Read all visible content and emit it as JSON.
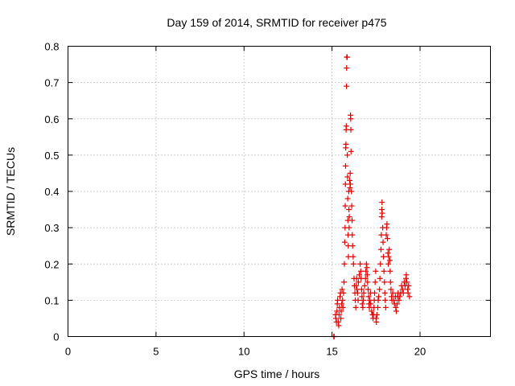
{
  "chart_data": {
    "type": "scatter",
    "title": "Day 159 of 2014, SRMTID for receiver p475",
    "xlabel": "GPS time / hours",
    "ylabel": "SRMTID / TECUs",
    "xlim": [
      0,
      24
    ],
    "ylim": [
      0,
      0.8
    ],
    "xticks": [
      "0",
      "5",
      "10",
      "15",
      "20"
    ],
    "yticks": [
      "0",
      "0.1",
      "0.2",
      "0.3",
      "0.4",
      "0.5",
      "0.6",
      "0.7",
      "0.8"
    ],
    "grid": true,
    "marker": "+",
    "series": [
      {
        "color": "#e00000",
        "points": [
          [
            15.1,
            0.0
          ],
          [
            15.12,
            0.0
          ],
          [
            15.2,
            0.06
          ],
          [
            15.22,
            0.05
          ],
          [
            15.25,
            0.04
          ],
          [
            15.28,
            0.07
          ],
          [
            15.3,
            0.09
          ],
          [
            15.32,
            0.1
          ],
          [
            15.35,
            0.04
          ],
          [
            15.38,
            0.03
          ],
          [
            15.4,
            0.06
          ],
          [
            15.42,
            0.08
          ],
          [
            15.45,
            0.11
          ],
          [
            15.48,
            0.12
          ],
          [
            15.5,
            0.05
          ],
          [
            15.52,
            0.07
          ],
          [
            15.55,
            0.09
          ],
          [
            15.57,
            0.13
          ],
          [
            15.6,
            0.1
          ],
          [
            15.62,
            0.08
          ],
          [
            15.65,
            0.12
          ],
          [
            15.68,
            0.15
          ],
          [
            15.7,
            0.2
          ],
          [
            15.72,
            0.26
          ],
          [
            15.74,
            0.3
          ],
          [
            15.75,
            0.36
          ],
          [
            15.76,
            0.42
          ],
          [
            15.77,
            0.47
          ],
          [
            15.78,
            0.52
          ],
          [
            15.79,
            0.53
          ],
          [
            15.8,
            0.57
          ],
          [
            15.81,
            0.58
          ],
          [
            15.82,
            0.69
          ],
          [
            15.83,
            0.74
          ],
          [
            15.84,
            0.77
          ],
          [
            15.86,
            0.77
          ],
          [
            15.87,
            0.5
          ],
          [
            15.88,
            0.44
          ],
          [
            15.89,
            0.38
          ],
          [
            15.9,
            0.32
          ],
          [
            15.91,
            0.28
          ],
          [
            15.92,
            0.25
          ],
          [
            15.93,
            0.22
          ],
          [
            15.95,
            0.4
          ],
          [
            15.96,
            0.35
          ],
          [
            15.97,
            0.3
          ],
          [
            15.98,
            0.33
          ],
          [
            16.0,
            0.43
          ],
          [
            16.02,
            0.41
          ],
          [
            16.03,
            0.45
          ],
          [
            16.04,
            0.42
          ],
          [
            16.05,
            0.61
          ],
          [
            16.06,
            0.6
          ],
          [
            16.07,
            0.57
          ],
          [
            16.08,
            0.51
          ],
          [
            16.1,
            0.4
          ],
          [
            16.12,
            0.36
          ],
          [
            16.14,
            0.32
          ],
          [
            16.15,
            0.28
          ],
          [
            16.17,
            0.25
          ],
          [
            16.2,
            0.22
          ],
          [
            16.22,
            0.2
          ],
          [
            16.25,
            0.16
          ],
          [
            16.27,
            0.14
          ],
          [
            16.3,
            0.12
          ],
          [
            16.32,
            0.1
          ],
          [
            16.35,
            0.08
          ],
          [
            16.38,
            0.14
          ],
          [
            16.4,
            0.16
          ],
          [
            16.42,
            0.13
          ],
          [
            16.45,
            0.12
          ],
          [
            16.48,
            0.1
          ],
          [
            16.5,
            0.15
          ],
          [
            16.55,
            0.17
          ],
          [
            16.6,
            0.2
          ],
          [
            16.63,
            0.18
          ],
          [
            16.65,
            0.16
          ],
          [
            16.68,
            0.13
          ],
          [
            16.7,
            0.11
          ],
          [
            16.72,
            0.09
          ],
          [
            16.75,
            0.08
          ],
          [
            16.78,
            0.1
          ],
          [
            16.8,
            0.12
          ],
          [
            16.85,
            0.14
          ],
          [
            16.9,
            0.16
          ],
          [
            16.92,
            0.18
          ],
          [
            16.95,
            0.2
          ],
          [
            16.98,
            0.19
          ],
          [
            17.0,
            0.17
          ],
          [
            17.02,
            0.15
          ],
          [
            17.05,
            0.13
          ],
          [
            17.08,
            0.11
          ],
          [
            17.1,
            0.09
          ],
          [
            17.12,
            0.08
          ],
          [
            17.15,
            0.1
          ],
          [
            17.18,
            0.12
          ],
          [
            17.2,
            0.09
          ],
          [
            17.25,
            0.07
          ],
          [
            17.3,
            0.06
          ],
          [
            17.33,
            0.05
          ],
          [
            17.35,
            0.06
          ],
          [
            17.38,
            0.08
          ],
          [
            17.4,
            0.1
          ],
          [
            17.42,
            0.12
          ],
          [
            17.45,
            0.15
          ],
          [
            17.48,
            0.18
          ],
          [
            17.5,
            0.05
          ],
          [
            17.52,
            0.04
          ],
          [
            17.55,
            0.06
          ],
          [
            17.6,
            0.08
          ],
          [
            17.62,
            0.1
          ],
          [
            17.65,
            0.11
          ],
          [
            17.7,
            0.13
          ],
          [
            17.72,
            0.16
          ],
          [
            17.75,
            0.2
          ],
          [
            17.78,
            0.24
          ],
          [
            17.8,
            0.28
          ],
          [
            17.82,
            0.33
          ],
          [
            17.83,
            0.35
          ],
          [
            17.84,
            0.37
          ],
          [
            17.85,
            0.34
          ],
          [
            17.88,
            0.3
          ],
          [
            17.9,
            0.26
          ],
          [
            17.92,
            0.22
          ],
          [
            17.95,
            0.18
          ],
          [
            17.98,
            0.15
          ],
          [
            18.0,
            0.12
          ],
          [
            18.02,
            0.1
          ],
          [
            18.05,
            0.08
          ],
          [
            18.08,
            0.28
          ],
          [
            18.1,
            0.3
          ],
          [
            18.12,
            0.31
          ],
          [
            18.15,
            0.27
          ],
          [
            18.18,
            0.23
          ],
          [
            18.2,
            0.2
          ],
          [
            18.22,
            0.22
          ],
          [
            18.25,
            0.24
          ],
          [
            18.28,
            0.21
          ],
          [
            18.3,
            0.18
          ],
          [
            18.32,
            0.15
          ],
          [
            18.35,
            0.13
          ],
          [
            18.38,
            0.11
          ],
          [
            18.4,
            0.1
          ],
          [
            18.45,
            0.12
          ],
          [
            18.5,
            0.1
          ],
          [
            18.55,
            0.09
          ],
          [
            18.6,
            0.11
          ],
          [
            18.62,
            0.08
          ],
          [
            18.65,
            0.07
          ],
          [
            18.7,
            0.09
          ],
          [
            18.72,
            0.11
          ],
          [
            18.75,
            0.12
          ],
          [
            18.8,
            0.1
          ],
          [
            18.85,
            0.11
          ],
          [
            18.9,
            0.12
          ],
          [
            18.95,
            0.14
          ],
          [
            19.0,
            0.13
          ],
          [
            19.05,
            0.12
          ],
          [
            19.1,
            0.15
          ],
          [
            19.15,
            0.14
          ],
          [
            19.2,
            0.16
          ],
          [
            19.22,
            0.17
          ],
          [
            19.25,
            0.15
          ],
          [
            19.3,
            0.13
          ],
          [
            19.32,
            0.12
          ],
          [
            19.35,
            0.14
          ],
          [
            19.4,
            0.11
          ]
        ]
      }
    ]
  }
}
